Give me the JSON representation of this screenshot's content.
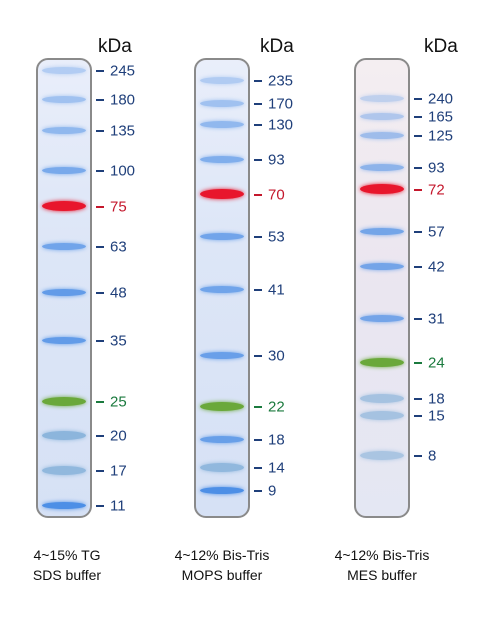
{
  "unit": "kDa",
  "colors": {
    "label_default": "#1f3f7a",
    "label_red": "#c4172c",
    "label_green": "#1b7a3e",
    "band_blue": "#4d8fe6",
    "band_red": "#e8162c",
    "band_green": "#6aa83a",
    "band_steel": "#7aaad6"
  },
  "panels": [
    {
      "id": "tg",
      "caption_line1": "4~15% TG",
      "caption_line2": "SDS buffer",
      "markers": [
        {
          "label": "245",
          "color": "default",
          "band": "blue",
          "strength": 0.35
        },
        {
          "label": "180",
          "color": "default",
          "band": "blue",
          "strength": 0.45
        },
        {
          "label": "135",
          "color": "default",
          "band": "blue",
          "strength": 0.55
        },
        {
          "label": "100",
          "color": "default",
          "band": "blue",
          "strength": 0.7
        },
        {
          "label": "75",
          "color": "red",
          "band": "red",
          "strength": 1.0
        },
        {
          "label": "63",
          "color": "default",
          "band": "blue",
          "strength": 0.75
        },
        {
          "label": "48",
          "color": "default",
          "band": "blue",
          "strength": 0.85
        },
        {
          "label": "35",
          "color": "default",
          "band": "blue",
          "strength": 0.85
        },
        {
          "label": "25",
          "color": "green",
          "band": "green",
          "strength": 1.0
        },
        {
          "label": "20",
          "color": "default",
          "band": "steel",
          "strength": 0.8
        },
        {
          "label": "17",
          "color": "default",
          "band": "steel",
          "strength": 0.75
        },
        {
          "label": "11",
          "color": "default",
          "band": "blue",
          "strength": 1.0
        }
      ]
    },
    {
      "id": "mops",
      "caption_line1": "4~12% Bis-Tris",
      "caption_line2": "MOPS buffer",
      "markers": [
        {
          "label": "235",
          "color": "default",
          "band": "blue",
          "strength": 0.35
        },
        {
          "label": "170",
          "color": "default",
          "band": "blue",
          "strength": 0.45
        },
        {
          "label": "130",
          "color": "default",
          "band": "blue",
          "strength": 0.55
        },
        {
          "label": "93",
          "color": "default",
          "band": "blue",
          "strength": 0.65
        },
        {
          "label": "70",
          "color": "red",
          "band": "red",
          "strength": 1.0
        },
        {
          "label": "53",
          "color": "default",
          "band": "blue",
          "strength": 0.75
        },
        {
          "label": "41",
          "color": "default",
          "band": "blue",
          "strength": 0.75
        },
        {
          "label": "30",
          "color": "default",
          "band": "blue",
          "strength": 0.8
        },
        {
          "label": "22",
          "color": "green",
          "band": "green",
          "strength": 1.0
        },
        {
          "label": "18",
          "color": "default",
          "band": "blue",
          "strength": 0.8
        },
        {
          "label": "14",
          "color": "default",
          "band": "steel",
          "strength": 0.75
        },
        {
          "label": "9",
          "color": "default",
          "band": "blue",
          "strength": 1.0
        }
      ]
    },
    {
      "id": "mes",
      "caption_line1": "4~12% Bis-Tris",
      "caption_line2": "MES buffer",
      "markers": [
        {
          "label": "240",
          "color": "default",
          "band": "blue",
          "strength": 0.3
        },
        {
          "label": "165",
          "color": "default",
          "band": "blue",
          "strength": 0.4
        },
        {
          "label": "125",
          "color": "default",
          "band": "blue",
          "strength": 0.5
        },
        {
          "label": "93",
          "color": "default",
          "band": "blue",
          "strength": 0.6
        },
        {
          "label": "72",
          "color": "red",
          "band": "red",
          "strength": 1.0
        },
        {
          "label": "57",
          "color": "default",
          "band": "blue",
          "strength": 0.75
        },
        {
          "label": "42",
          "color": "default",
          "band": "blue",
          "strength": 0.75
        },
        {
          "label": "31",
          "color": "default",
          "band": "blue",
          "strength": 0.75
        },
        {
          "label": "24",
          "color": "green",
          "band": "green",
          "strength": 1.0
        },
        {
          "label": "18",
          "color": "default",
          "band": "steel",
          "strength": 0.6
        },
        {
          "label": "15",
          "color": "default",
          "band": "steel",
          "strength": 0.6
        },
        {
          "label": "8",
          "color": "default",
          "band": "steel",
          "strength": 0.55
        }
      ]
    }
  ]
}
